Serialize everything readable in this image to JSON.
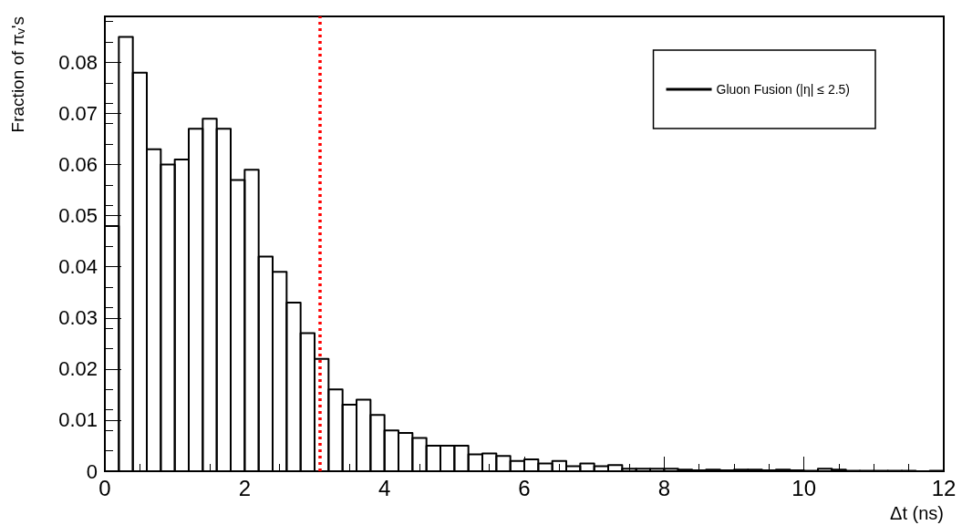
{
  "chart_data": {
    "type": "histogram",
    "xlabel": "Δt (ns)",
    "ylabel": "Fraction of πᵥ's",
    "bins": [
      0,
      0.2,
      0.4,
      0.6,
      0.8,
      1,
      1.2,
      1.4,
      1.6,
      1.8,
      2,
      2.2,
      2.4,
      2.6,
      2.8,
      3,
      3.2,
      3.4,
      3.6,
      3.8,
      4,
      4.2,
      4.4,
      4.6,
      4.8,
      5,
      5.2,
      5.4,
      5.6,
      5.8,
      6,
      6.2,
      6.4,
      6.6,
      6.8,
      7,
      7.2,
      7.4,
      7.6,
      7.8,
      8,
      8.2,
      8.4,
      8.6,
      8.8,
      9,
      9.2,
      9.4,
      9.6,
      9.8,
      10,
      10.2,
      10.4,
      10.6,
      10.8,
      11,
      11.2,
      11.4,
      11.6,
      11.8,
      12
    ],
    "series": [
      {
        "name": "Gluon Fusion (|η| ≤ 2.5)",
        "color": "#000000",
        "values": [
          0.048,
          0.085,
          0.078,
          0.063,
          0.06,
          0.061,
          0.067,
          0.069,
          0.067,
          0.057,
          0.059,
          0.042,
          0.039,
          0.033,
          0.027,
          0.022,
          0.016,
          0.013,
          0.014,
          0.011,
          0.008,
          0.0075,
          0.0065,
          0.005,
          0.005,
          0.005,
          0.0033,
          0.0035,
          0.003,
          0.002,
          0.0023,
          0.0015,
          0.002,
          0.001,
          0.0015,
          0.001,
          0.0012,
          0.0005,
          0.0005,
          0.0005,
          0.0005,
          0.0003,
          0.0002,
          0.0003,
          0.0002,
          0.0003,
          0.0003,
          0.0002,
          0.0003,
          0.0002,
          0.0001,
          0.0005,
          0.0003,
          0.0001,
          0.0001,
          0.0001,
          0.0001,
          0.0001,
          0,
          0.0001
        ]
      }
    ],
    "xlim": [
      0,
      12
    ],
    "xticks": [
      0,
      2,
      4,
      6,
      8,
      10,
      12
    ],
    "ylim": [
      0,
      0.089
    ],
    "yticks": [
      0,
      0.01,
      0.02,
      0.03,
      0.04,
      0.05,
      0.06,
      0.07,
      0.08
    ],
    "ref_lines": [
      {
        "axis": "x",
        "value": 3.08,
        "color": "#ff0000",
        "line_style": "dotted"
      }
    ],
    "legend": "top right",
    "grid": false
  }
}
